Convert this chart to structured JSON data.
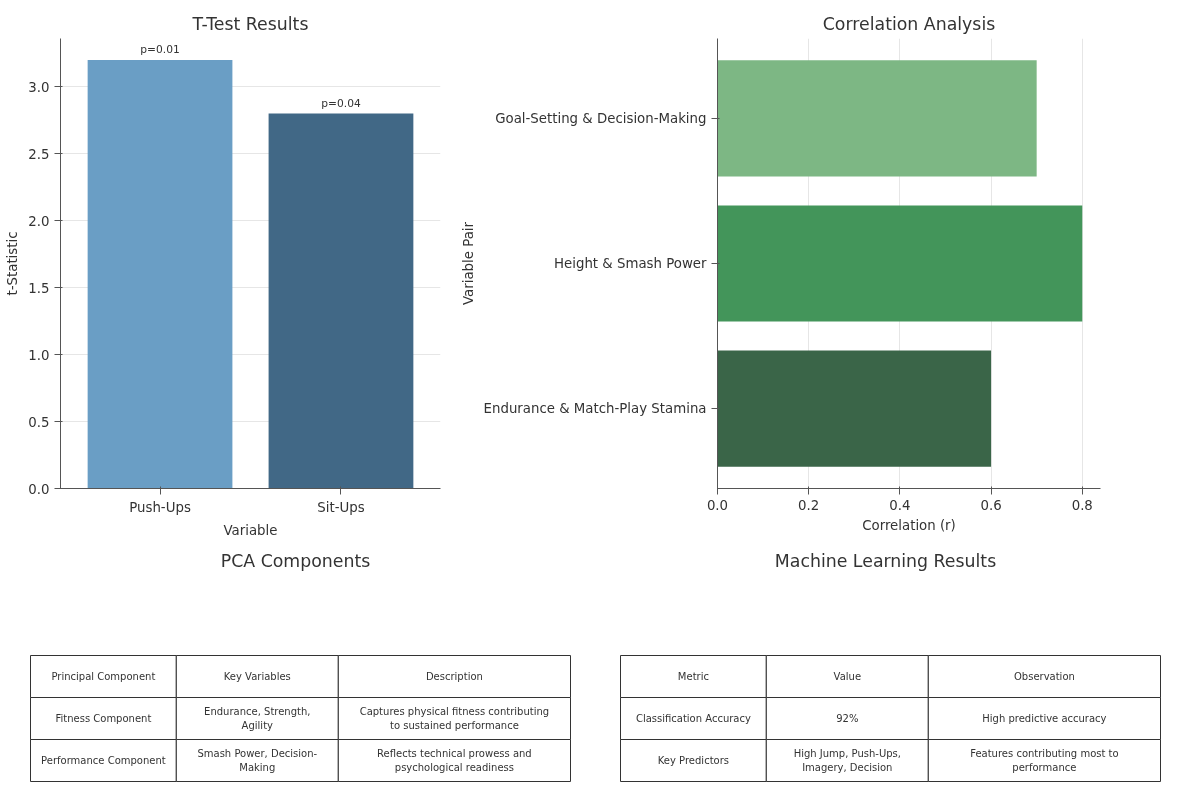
{
  "chart_data": [
    {
      "type": "bar",
      "title": "T-Test Results",
      "xlabel": "Variable",
      "ylabel": "t-Statistic",
      "categories": [
        "Push-Ups",
        "Sit-Ups"
      ],
      "values": [
        3.2,
        2.8
      ],
      "colors": [
        "#6a9ec5",
        "#416886"
      ],
      "ylim": [
        0,
        3.36
      ],
      "yticks": [
        {
          "value": 0,
          "label": "0.0"
        },
        0.5,
        {
          "value": 1,
          "label": "1.0"
        },
        1.5,
        {
          "value": 2,
          "label": "2.0"
        },
        2.5,
        {
          "value": 3,
          "label": "3.0"
        }
      ],
      "grid": "y",
      "annotations": [
        {
          "text": "p=0.01",
          "x": "Push-Ups",
          "y": 3.2
        },
        {
          "text": "p=0.04",
          "x": "Sit-Ups",
          "y": 2.8
        }
      ]
    },
    {
      "type": "bar",
      "orientation": "horizontal",
      "title": "Correlation Analysis",
      "xlabel": "Correlation (r)",
      "ylabel": "Variable Pair",
      "categories": [
        "Goal-Setting & Decision-Making",
        "Height & Smash Power",
        "Endurance & Match-Play Stamina"
      ],
      "values": [
        0.7,
        0.8,
        0.6
      ],
      "colors": [
        "#7db784",
        "#43955a",
        "#3a6548"
      ],
      "xlim": [
        0,
        0.84
      ],
      "xticks": [
        {
          "value": 0,
          "label": "0.0"
        },
        0.2,
        0.4,
        0.6,
        0.8
      ],
      "grid": "x"
    },
    {
      "type": "other",
      "title": "PCA Components",
      "categories": [
        "Principal Component",
        "Key Variables",
        "Description"
      ],
      "cell_labels": [
        [
          "Fitness Component",
          "Endurance, Strength, Agility",
          "Captures physical fitness contributing to sustained performance"
        ],
        [
          "Performance Component",
          "Smash Power, Decision-Making",
          "Reflects technical prowess and psychological readiness"
        ]
      ]
    },
    {
      "type": "other",
      "title": "Machine Learning Results",
      "categories": [
        "Metric",
        "Value",
        "Observation"
      ],
      "cell_labels": [
        [
          "Classification Accuracy",
          "92%",
          "High predictive accuracy"
        ],
        [
          "Key Predictors",
          "High Jump, Push-Ups, Imagery, Decision",
          "Features contributing most to performance"
        ]
      ]
    }
  ]
}
